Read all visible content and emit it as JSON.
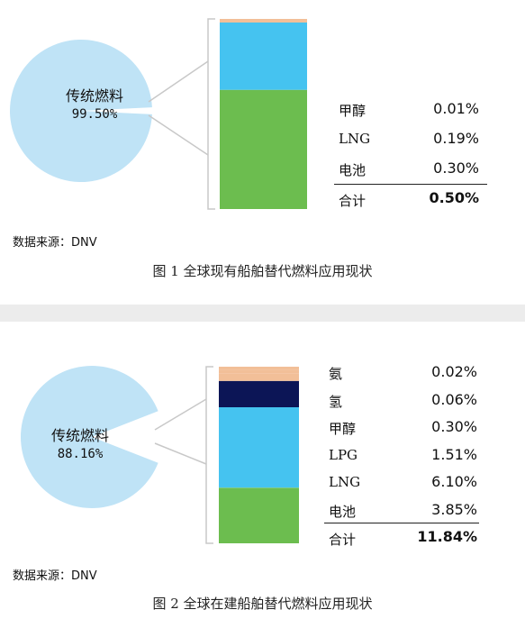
{
  "figures": [
    {
      "pie_label": "传统燃料",
      "pie_percent": "99.50%",
      "source": "数据来源：DNV",
      "caption": "图 1  全球现有船舶替代燃料应用现状",
      "rows": [
        {
          "name": "甲醇",
          "value": "0.01%"
        },
        {
          "name": "LNG",
          "value": "0.19%"
        },
        {
          "name": "电池",
          "value": "0.30%"
        }
      ],
      "total": {
        "name": "合计",
        "value": "0.50%"
      }
    },
    {
      "pie_label": "传统燃料",
      "pie_percent": "88.16%",
      "source": "数据来源：DNV",
      "caption": "图 2  全球在建船舶替代燃料应用现状",
      "rows": [
        {
          "name": "氨",
          "value": "0.02%"
        },
        {
          "name": "氢",
          "value": "0.06%"
        },
        {
          "name": "甲醇",
          "value": "0.30%"
        },
        {
          "name": "LPG",
          "value": "1.51%"
        },
        {
          "name": "LNG",
          "value": "6.10%"
        },
        {
          "name": "电池",
          "value": "3.85%"
        }
      ],
      "total": {
        "name": "合计",
        "value": "11.84%"
      }
    }
  ],
  "colors": {
    "pie": "#bfe3f6",
    "connector": "#c8c8c8",
    "bar_battery": "#6cbd4f",
    "bar_lng": "#45c3f0",
    "bar_methanol": "#f2bf98",
    "bar_lpg": "#0c1556",
    "bar_ammonia_hydrogen": "#f2bf98"
  },
  "chart_data": [
    {
      "type": "bar",
      "title": "图 1  全球现有船舶替代燃料应用现状",
      "pie": {
        "label": "传统燃料",
        "value": 99.5
      },
      "stack_order_bottom_to_top": [
        "电池",
        "LNG",
        "甲醇"
      ],
      "series": [
        {
          "name": "电池",
          "value": 0.3
        },
        {
          "name": "LNG",
          "value": 0.19
        },
        {
          "name": "甲醇",
          "value": 0.01
        }
      ],
      "total": 0.5
    },
    {
      "type": "bar",
      "title": "图 2  全球在建船舶替代燃料应用现状",
      "pie": {
        "label": "传统燃料",
        "value": 88.16
      },
      "stack_order_bottom_to_top": [
        "电池",
        "LNG",
        "LPG",
        "甲醇",
        "氢",
        "氨"
      ],
      "series": [
        {
          "name": "电池",
          "value": 3.85
        },
        {
          "name": "LNG",
          "value": 6.1
        },
        {
          "name": "LPG",
          "value": 1.51
        },
        {
          "name": "甲醇",
          "value": 0.3
        },
        {
          "name": "氢",
          "value": 0.06
        },
        {
          "name": "氨",
          "value": 0.02
        }
      ],
      "total": 11.84
    }
  ]
}
